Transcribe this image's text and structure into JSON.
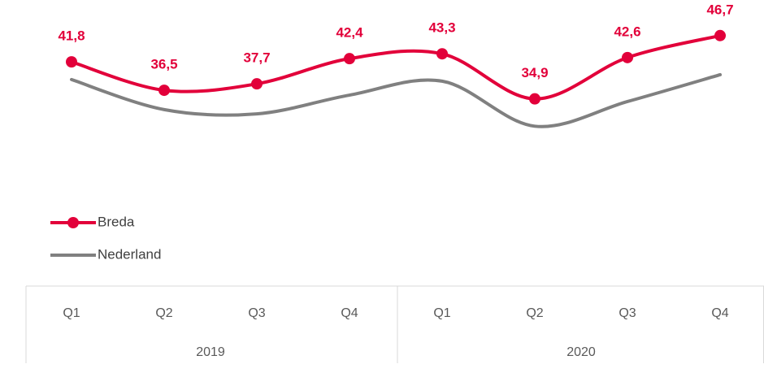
{
  "chart_data": {
    "type": "line",
    "categories": [
      "Q1",
      "Q2",
      "Q3",
      "Q4",
      "Q1",
      "Q2",
      "Q3",
      "Q4"
    ],
    "category_groups": [
      "2019",
      "2020"
    ],
    "series": [
      {
        "name": "Breda",
        "color": "#e2003a",
        "markers": true,
        "values": [
          41.8,
          36.5,
          37.7,
          42.4,
          43.3,
          34.9,
          42.6,
          46.7
        ],
        "value_labels": [
          "41,8",
          "36,5",
          "37,7",
          "42,4",
          "43,3",
          "34,9",
          "42,6",
          "46,7"
        ]
      },
      {
        "name": "Nederland",
        "color": "#808080",
        "markers": false,
        "values": [
          38.5,
          32.9,
          32.1,
          35.6,
          38.2,
          29.8,
          34.4,
          39.4
        ]
      }
    ],
    "ylim": [
      0,
      50
    ],
    "smooth": true,
    "legend": "left"
  }
}
